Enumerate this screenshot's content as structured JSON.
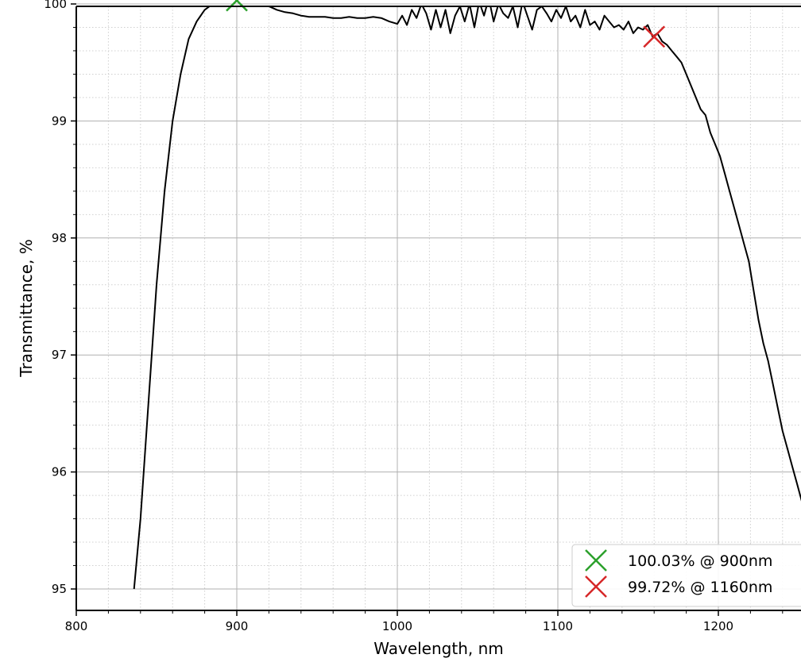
{
  "chart_data": {
    "type": "line",
    "title": "",
    "xlabel": "Wavelength, nm",
    "ylabel": "Transmittance, %",
    "xlim": [
      800,
      1260
    ],
    "ylim": [
      95,
      100.2
    ],
    "x_ticks": [
      800,
      900,
      1000,
      1100,
      1200
    ],
    "x_tick_labels": [
      "800",
      "900",
      "1000",
      "1100",
      "1200"
    ],
    "y_ticks": [
      95,
      96,
      97,
      98,
      99,
      100
    ],
    "y_tick_labels": [
      "95",
      "96",
      "97",
      "98",
      "99",
      "100"
    ],
    "grid": "major solid, minor dotted",
    "legend_placement": "bottom-right",
    "series": [
      {
        "color": "#000000",
        "x": [
          836,
          840,
          845,
          850,
          855,
          860,
          865,
          870,
          875,
          880,
          885,
          890,
          895,
          900,
          905,
          910,
          915,
          920,
          925,
          930,
          935,
          940,
          945,
          950,
          955,
          960,
          965,
          970,
          975,
          980,
          985,
          990,
          995,
          1000,
          1003,
          1006,
          1009,
          1012,
          1015,
          1018,
          1021,
          1024,
          1027,
          1030,
          1033,
          1036,
          1039,
          1042,
          1045,
          1048,
          1051,
          1054,
          1057,
          1060,
          1063,
          1066,
          1069,
          1072,
          1075,
          1078,
          1081,
          1084,
          1087,
          1090,
          1093,
          1096,
          1099,
          1102,
          1105,
          1108,
          1111,
          1114,
          1117,
          1120,
          1123,
          1126,
          1129,
          1132,
          1135,
          1138,
          1141,
          1144,
          1147,
          1150,
          1153,
          1156,
          1159,
          1162,
          1165,
          1168,
          1171,
          1174,
          1177,
          1180,
          1183,
          1186,
          1189,
          1192,
          1195,
          1198,
          1201,
          1204,
          1207,
          1210,
          1213,
          1216,
          1219,
          1222,
          1225,
          1228,
          1231,
          1234,
          1237,
          1240,
          1243,
          1246,
          1249,
          1252,
          1255,
          1258,
          1260
        ],
        "y": [
          95.0,
          95.6,
          96.6,
          97.6,
          98.4,
          99.0,
          99.4,
          99.7,
          99.85,
          99.95,
          100.0,
          100.02,
          100.03,
          100.03,
          100.03,
          100.02,
          100.0,
          99.98,
          99.95,
          99.93,
          99.92,
          99.9,
          99.89,
          99.89,
          99.89,
          99.88,
          99.88,
          99.89,
          99.88,
          99.88,
          99.89,
          99.88,
          99.85,
          99.83,
          99.9,
          99.82,
          99.95,
          99.88,
          100.0,
          99.92,
          99.78,
          99.95,
          99.8,
          99.95,
          99.75,
          99.9,
          99.98,
          99.85,
          100.0,
          99.8,
          100.02,
          99.9,
          100.05,
          99.85,
          100.0,
          99.92,
          99.88,
          99.98,
          99.8,
          100.02,
          99.9,
          99.78,
          99.95,
          99.98,
          99.92,
          99.85,
          99.95,
          99.88,
          99.98,
          99.85,
          99.9,
          99.8,
          99.95,
          99.82,
          99.85,
          99.78,
          99.9,
          99.85,
          99.8,
          99.82,
          99.78,
          99.85,
          99.75,
          99.8,
          99.78,
          99.82,
          99.72,
          99.75,
          99.68,
          99.65,
          99.6,
          99.55,
          99.5,
          99.4,
          99.3,
          99.2,
          99.1,
          99.05,
          98.9,
          98.8,
          98.7,
          98.55,
          98.4,
          98.25,
          98.1,
          97.95,
          97.8,
          97.55,
          97.3,
          97.1,
          96.95,
          96.75,
          96.55,
          96.35,
          96.2,
          96.05,
          95.9,
          95.75,
          95.6,
          95.45,
          95.35
        ]
      }
    ],
    "markers": [
      {
        "label": "100.03% @ 900nm",
        "x": 900,
        "y": 100.03,
        "color": "#2ca02c"
      },
      {
        "label": "99.72% @ 1160nm",
        "x": 1160,
        "y": 99.72,
        "color": "#d62728"
      }
    ]
  }
}
